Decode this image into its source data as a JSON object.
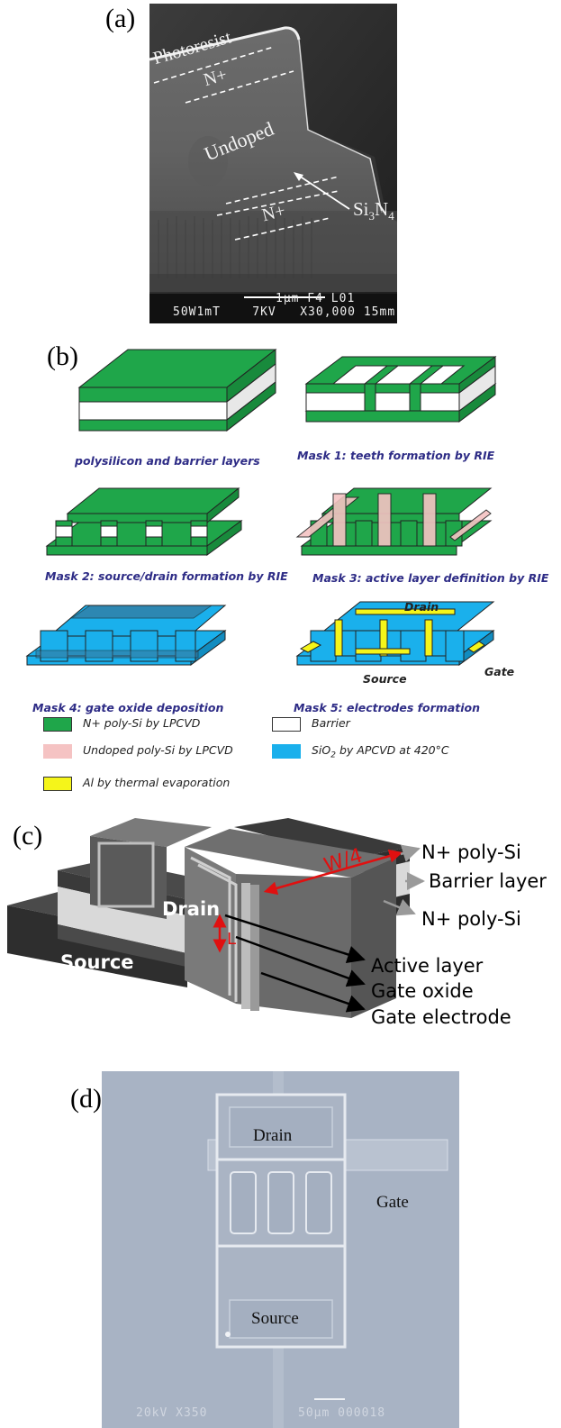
{
  "panel_a": {
    "label": "(a)",
    "layers": {
      "photoresist": "Photoresist",
      "n_plus_top": "N+",
      "undoped": "Undoped",
      "n_plus_bottom": "N+",
      "si3n4_si": "Si",
      "si3n4_sub3": "3",
      "si3n4_n": "N",
      "si3n4_sub4": "4"
    },
    "footer": {
      "scale": "1µm F4 L01",
      "info": "50W1mT    7KV   X30,000 15mm"
    }
  },
  "panel_b": {
    "label": "(b)",
    "steps": [
      "polysilicon and barrier layers",
      "Mask 1: teeth formation by RIE",
      "Mask 2: source/drain formation by RIE",
      "Mask 3: active layer definition by RIE",
      "Mask 4: gate oxide deposition",
      "Mask 5: electrodes formation"
    ],
    "device_labels": {
      "drain": "Drain",
      "source": "Source",
      "gate": "Gate"
    },
    "legend": [
      {
        "text": "N+ poly-Si by LPCVD",
        "color": "#1fa64a"
      },
      {
        "text": "Barrier",
        "color": "#ffffff"
      },
      {
        "text": "Undoped poly-Si by LPCVD",
        "color": "#f5c3c3"
      },
      {
        "text": "SiO",
        "sub": "2",
        "tail": " by APCVD at 420°C",
        "color": "#1ab0ec"
      },
      {
        "text": "Al by thermal evaporation",
        "color": "#f5f51a"
      }
    ]
  },
  "panel_c": {
    "label": "(c)",
    "block_labels": {
      "drain": "Drain",
      "source": "Source",
      "w4": "W/4",
      "l": "L"
    },
    "annotations": [
      "N+ poly-Si",
      "Barrier layer",
      "N+ poly-Si",
      "Active layer",
      "Gate oxide",
      "Gate electrode"
    ]
  },
  "panel_d": {
    "label": "(d)",
    "regions": {
      "drain": "Drain",
      "gate": "Gate",
      "source": "Source"
    },
    "footer": {
      "left": "20kV X350",
      "right": "50µm 000018"
    }
  }
}
